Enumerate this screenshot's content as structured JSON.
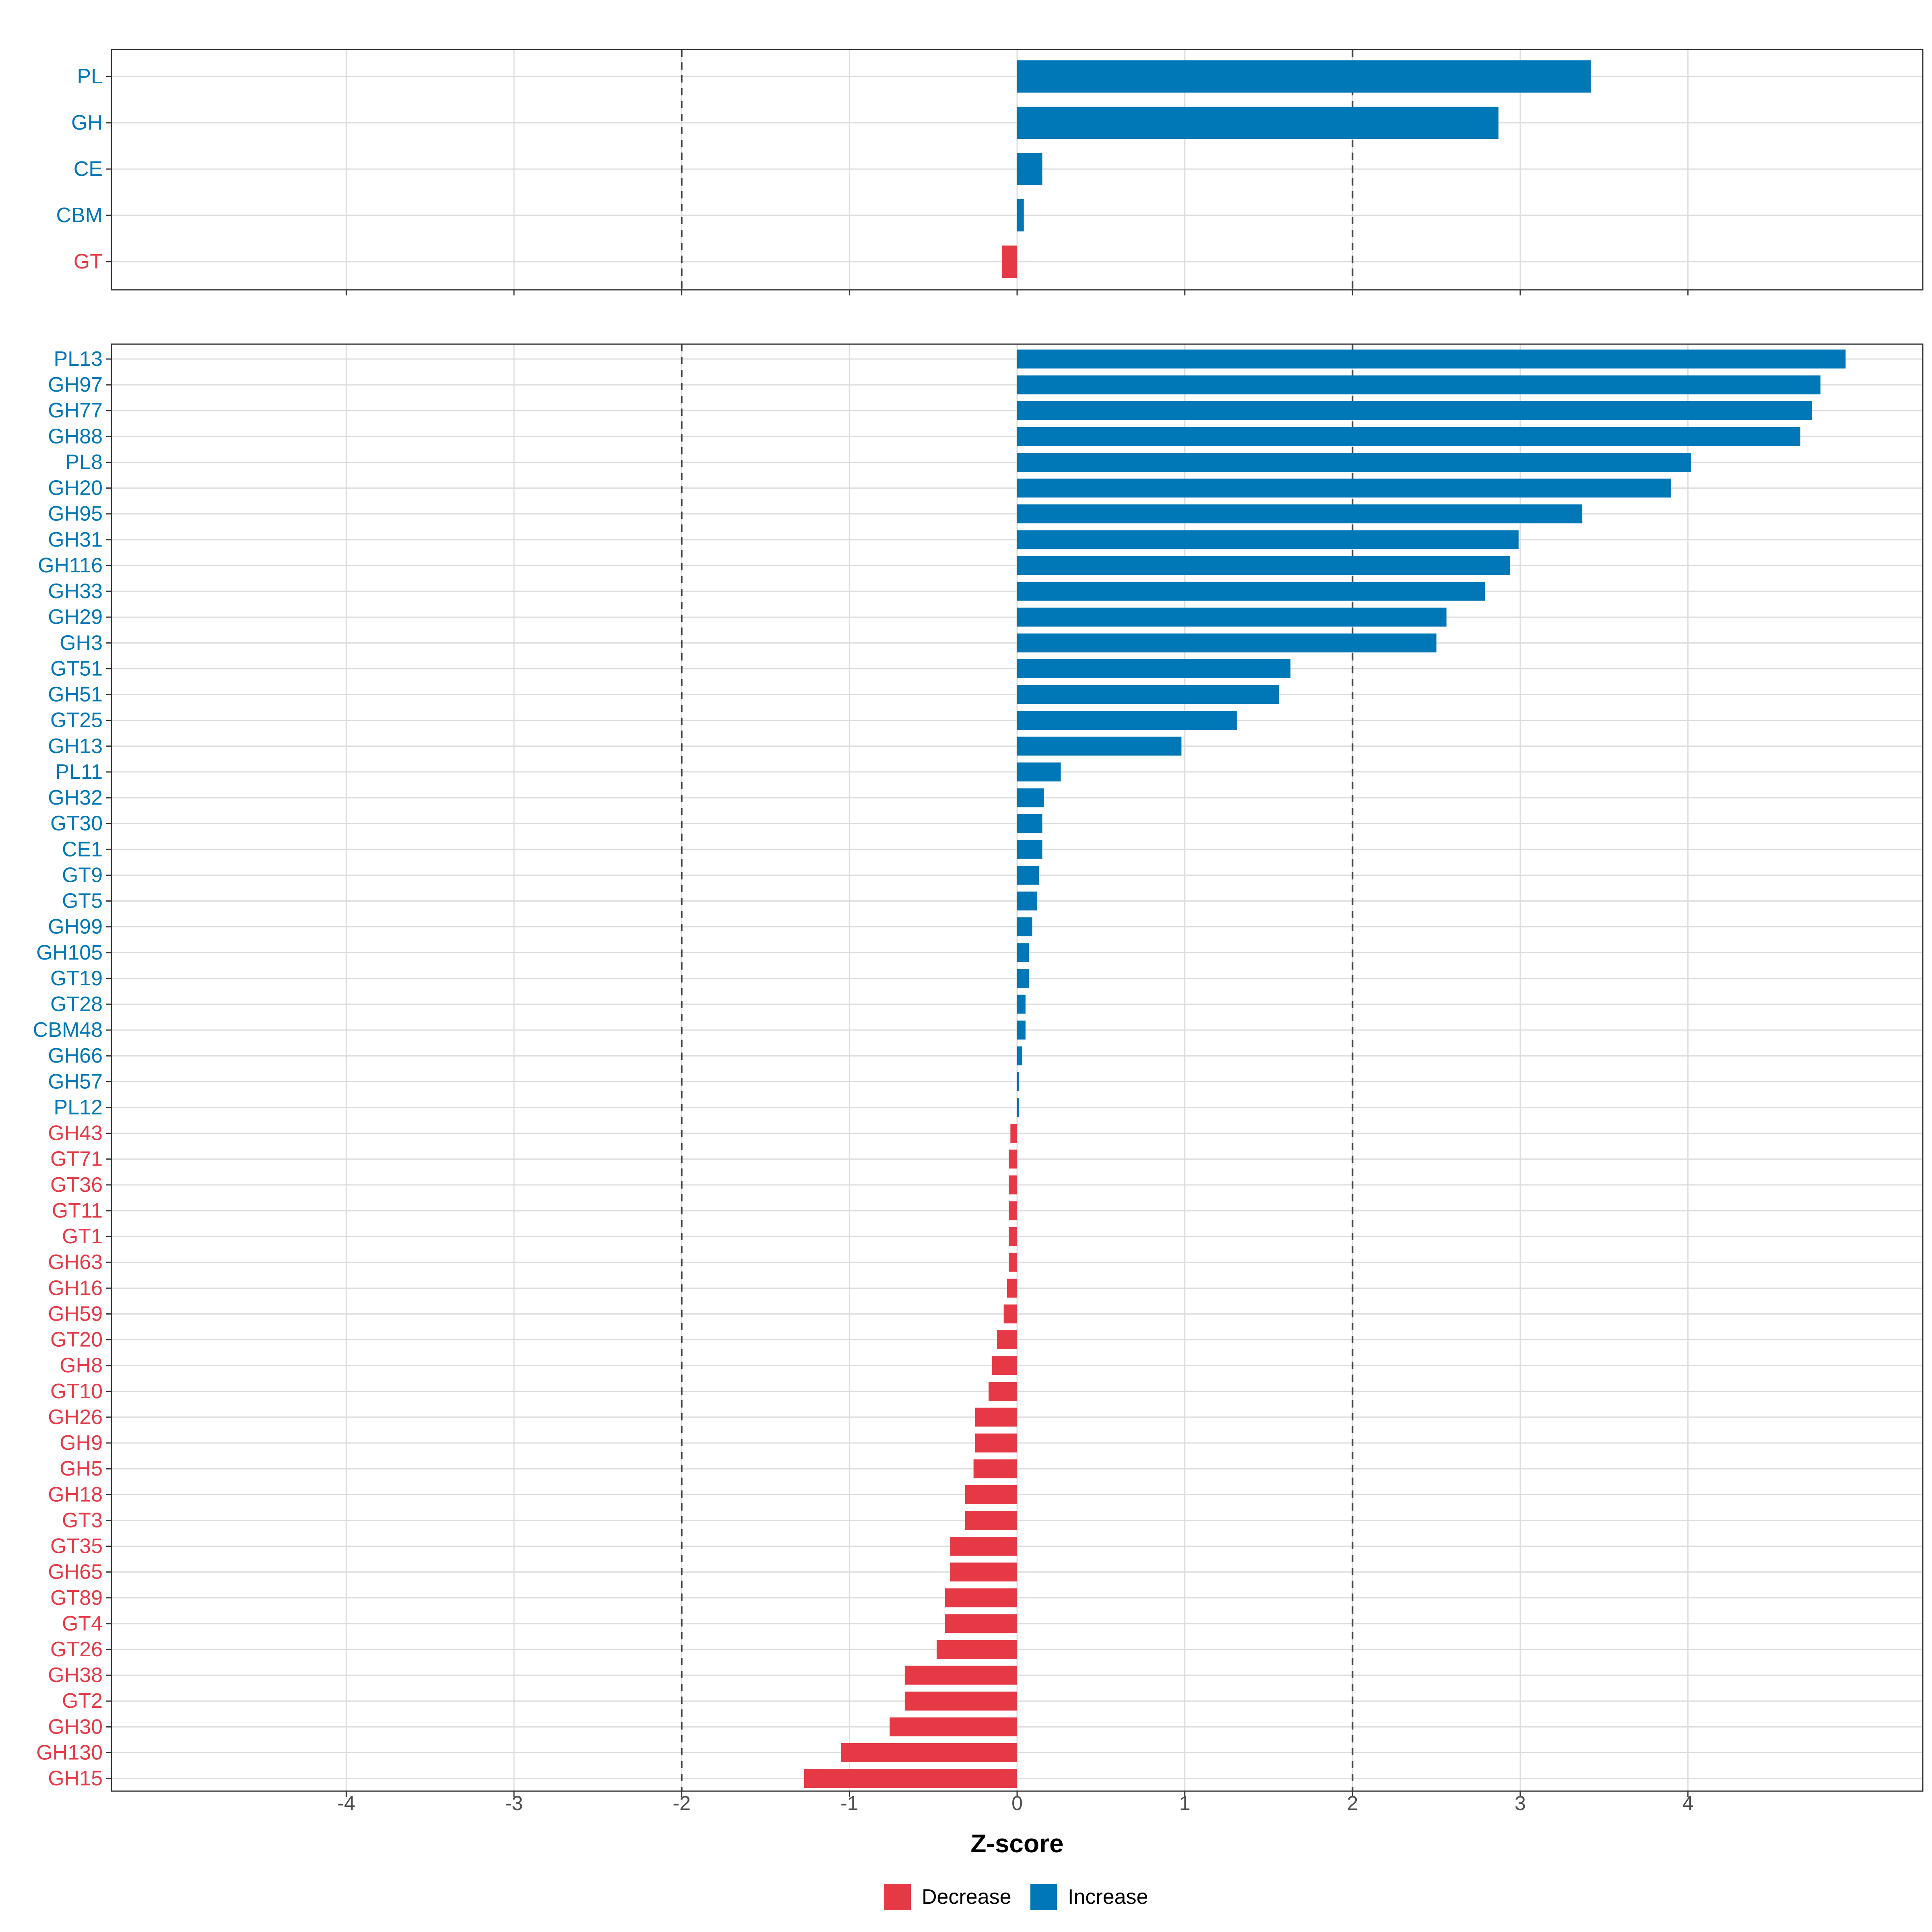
{
  "colors": {
    "increase": "#0077b6",
    "decrease": "#e63946"
  },
  "chart_data": {
    "type": "bar",
    "orientation": "horizontal",
    "xlabel": "Z-score",
    "xlim": [
      -5.4,
      5.4
    ],
    "x_ticks": [
      -4,
      -3,
      -2,
      -1,
      0,
      1,
      2,
      3,
      4
    ],
    "x_tick_labels": [
      "-4",
      "-3",
      "-2",
      "-1",
      "0",
      "1",
      "2",
      "3",
      "4"
    ],
    "reference_lines": [
      -2,
      2
    ],
    "legend": [
      {
        "label": "Decrease",
        "key": "decrease"
      },
      {
        "label": "Increase",
        "key": "increase"
      }
    ],
    "panels": [
      {
        "name": "class",
        "categories": [
          "PL",
          "GH",
          "CE",
          "CBM",
          "GT"
        ],
        "values": [
          3.42,
          2.87,
          0.15,
          0.04,
          -0.09
        ]
      },
      {
        "name": "family",
        "categories": [
          "PL13",
          "GH97",
          "GH77",
          "GH88",
          "PL8",
          "GH20",
          "GH95",
          "GH31",
          "GH116",
          "GH33",
          "GH29",
          "GH3",
          "GT51",
          "GH51",
          "GT25",
          "GH13",
          "PL11",
          "GH32",
          "GT30",
          "CE1",
          "GT9",
          "GT5",
          "GH99",
          "GH105",
          "GT19",
          "GT28",
          "CBM48",
          "GH66",
          "GH57",
          "PL12",
          "GH43",
          "GT71",
          "GT36",
          "GT11",
          "GT1",
          "GH63",
          "GH16",
          "GH59",
          "GT20",
          "GH8",
          "GT10",
          "GH26",
          "GH9",
          "GH5",
          "GH18",
          "GT3",
          "GT35",
          "GH65",
          "GT89",
          "GT4",
          "GT26",
          "GH38",
          "GT2",
          "GH30",
          "GH130",
          "GH15"
        ],
        "values": [
          4.94,
          4.79,
          4.74,
          4.67,
          4.02,
          3.9,
          3.37,
          2.99,
          2.94,
          2.79,
          2.56,
          2.5,
          1.63,
          1.56,
          1.31,
          0.98,
          0.26,
          0.16,
          0.15,
          0.15,
          0.13,
          0.12,
          0.09,
          0.07,
          0.07,
          0.05,
          0.05,
          0.03,
          0.01,
          0.01,
          -0.04,
          -0.05,
          -0.05,
          -0.05,
          -0.05,
          -0.05,
          -0.06,
          -0.08,
          -0.12,
          -0.15,
          -0.17,
          -0.25,
          -0.25,
          -0.26,
          -0.31,
          -0.31,
          -0.4,
          -0.4,
          -0.43,
          -0.43,
          -0.48,
          -0.67,
          -0.67,
          -0.76,
          -1.05,
          -1.27
        ]
      }
    ]
  }
}
